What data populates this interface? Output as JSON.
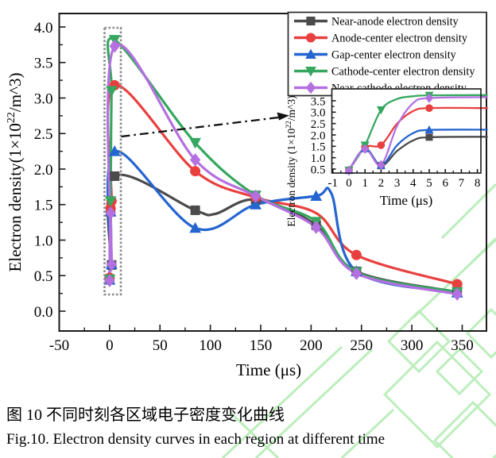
{
  "figure": {
    "caption_cn": "图 10 不同时刻各区域电子密度变化曲线",
    "caption_en": "Fig.10. Electron density curves in each region at different time"
  },
  "colors": {
    "near_anode": "#4b4b4b",
    "anode_center": "#e8403f",
    "gap_center": "#2565d0",
    "cathode_center": "#36a75f",
    "near_cathode": "#b470e0",
    "axis": "#1a1a1a",
    "zoom_box": "#8a8a8a",
    "arrow": "#111111",
    "watermark": "#bceebc"
  },
  "legend": {
    "position": "top-right",
    "items": [
      {
        "label": "Near-anode electron density",
        "marker": "square",
        "color": "#4b4b4b"
      },
      {
        "label": "Anode-center electron density",
        "marker": "circle",
        "color": "#e8403f"
      },
      {
        "label": "Gap-center electron density",
        "marker": "triangle-up",
        "color": "#2565d0"
      },
      {
        "label": "Cathode-center electron density",
        "marker": "triangle-down",
        "color": "#36a75f"
      },
      {
        "label": "Near-cathode electron density",
        "marker": "diamond",
        "color": "#b470e0"
      }
    ]
  },
  "chart_data": [
    {
      "type": "line",
      "title": "",
      "xlabel": "Time (μs)",
      "ylabel": "Electron density(1×10^22/m^3)",
      "ylabel_parts": {
        "pre": "Electron density(1×10",
        "sup": "22",
        "post": "/m^3)"
      },
      "xlim": [
        -50,
        373
      ],
      "ylim": [
        -0.28,
        4.19
      ],
      "grid": false,
      "xticks": [
        -50,
        0,
        50,
        100,
        150,
        200,
        250,
        300,
        350
      ],
      "xtick_labels": [
        "-50",
        "0",
        "50",
        "100",
        "150",
        "200",
        "250",
        "300",
        "350"
      ],
      "yticks": [
        0,
        0.5,
        1,
        1.5,
        2,
        2.5,
        3,
        3.5,
        4
      ],
      "ytick_labels": [
        "0.0",
        "0.5",
        "1.0",
        "1.5",
        "2.0",
        "2.5",
        "3.0",
        "3.5",
        "4.0"
      ],
      "series": [
        {
          "name": "Near-anode electron density",
          "slug": "near-anode",
          "color": "#4b4b4b",
          "marker": "square",
          "x": [
            0,
            1,
            2,
            5,
            85,
            145,
            205,
            245,
            345
          ],
          "y": [
            0.45,
            1.4,
            0.65,
            1.9,
            1.42,
            1.57,
            1.21,
            0.56,
            0.27
          ],
          "line_extra": [
            [
              105,
              1.37
            ]
          ]
        },
        {
          "name": "Anode-center electron density",
          "slug": "anode-center",
          "color": "#e8403f",
          "marker": "circle",
          "x": [
            0,
            1,
            2,
            5,
            85,
            145,
            245,
            345
          ],
          "y": [
            0.47,
            1.45,
            1.55,
            3.18,
            1.97,
            1.6,
            0.79,
            0.38
          ],
          "line_extra": [
            [
              205,
              1.38
            ]
          ]
        },
        {
          "name": "Gap-center electron density",
          "slug": "gap-center",
          "color": "#2565d0",
          "marker": "triangle-up",
          "x": [
            0,
            1,
            2,
            5,
            85,
            145,
            205,
            245,
            345
          ],
          "y": [
            0.44,
            1.4,
            0.66,
            2.25,
            1.17,
            1.5,
            1.62,
            0.56,
            0.26
          ],
          "line_extra": [
            [
              220,
              1.66
            ]
          ]
        },
        {
          "name": "Cathode-center electron density",
          "slug": "cathode-center",
          "color": "#36a75f",
          "marker": "triangle-down",
          "x": [
            0,
            1,
            2,
            5,
            85,
            145,
            205,
            245,
            345
          ],
          "y": [
            0.45,
            1.55,
            3.1,
            3.82,
            2.37,
            1.63,
            1.26,
            0.55,
            0.27
          ],
          "line_extra": []
        },
        {
          "name": "Near-cathode electron density",
          "slug": "near-cathode",
          "color": "#b470e0",
          "marker": "diamond",
          "x": [
            0,
            1,
            2,
            5,
            85,
            145,
            205,
            245,
            345
          ],
          "y": [
            0.43,
            1.38,
            0.66,
            3.73,
            2.13,
            1.62,
            1.18,
            0.53,
            0.24
          ],
          "line_extra": []
        }
      ],
      "annotations": {
        "zoom_region_box": {
          "x_range": [
            -5,
            11
          ],
          "y_range": [
            0.26,
            3.99
          ]
        },
        "arrow_to_inset": true
      }
    },
    {
      "type": "line",
      "title": "",
      "xlabel": "Time (μs)",
      "ylabel": "Electron density (1×10^22/m^3)",
      "ylabel_parts": {
        "pre": "Electron density (1×10",
        "sup": "22",
        "post": "/m^3)"
      },
      "xlim": [
        -1,
        8.7
      ],
      "ylim": [
        0.33,
        4.0
      ],
      "grid": false,
      "xticks": [
        -1,
        0,
        1,
        2,
        3,
        4,
        5,
        6,
        7,
        8
      ],
      "xtick_labels": [
        "-1",
        "0",
        "1",
        "2",
        "3",
        "4",
        "5",
        "6",
        "7",
        "8"
      ],
      "yticks": [
        0.5,
        1,
        1.5,
        2,
        2.5,
        3,
        3.5
      ],
      "ytick_labels": [
        "0.5",
        "1.0",
        "1.5",
        "2.0",
        "2.5",
        "3.0",
        "3.5"
      ],
      "series": [
        {
          "name": "Near-anode electron density",
          "slug": "near-anode",
          "color": "#4b4b4b",
          "marker": "square",
          "x": [
            0,
            1,
            2,
            5
          ],
          "y": [
            0.45,
            1.4,
            0.65,
            1.9
          ],
          "line_extra": [
            [
              3,
              1.3
            ],
            [
              4,
              1.76
            ],
            [
              8.6,
              1.92
            ]
          ]
        },
        {
          "name": "Anode-center electron density",
          "slug": "anode-center",
          "color": "#e8403f",
          "marker": "circle",
          "x": [
            0,
            1,
            2,
            5
          ],
          "y": [
            0.46,
            1.45,
            1.55,
            3.18
          ],
          "line_extra": [
            [
              3,
              2.5
            ],
            [
              4,
              3.05
            ],
            [
              8.6,
              3.18
            ]
          ]
        },
        {
          "name": "Gap-center electron density",
          "slug": "gap-center",
          "color": "#2565d0",
          "marker": "triangle-up",
          "x": [
            0,
            1,
            2,
            5
          ],
          "y": [
            0.44,
            1.4,
            0.66,
            2.22
          ],
          "line_extra": [
            [
              3,
              1.55
            ],
            [
              4,
              2.08
            ],
            [
              8.6,
              2.23
            ]
          ]
        },
        {
          "name": "Cathode-center electron density",
          "slug": "cathode-center",
          "color": "#36a75f",
          "marker": "triangle-down",
          "x": [
            0,
            1,
            2,
            5
          ],
          "y": [
            0.45,
            1.55,
            3.1,
            3.74
          ],
          "line_extra": [
            [
              3,
              3.58
            ],
            [
              4,
              3.7
            ],
            [
              8.6,
              3.75
            ]
          ]
        },
        {
          "name": "Near-cathode electron density",
          "slug": "near-cathode",
          "color": "#b470e0",
          "marker": "diamond",
          "x": [
            0,
            1,
            2,
            5
          ],
          "y": [
            0.43,
            1.38,
            0.68,
            3.62
          ],
          "line_extra": [
            [
              3,
              2.4
            ],
            [
              4,
              3.4
            ],
            [
              8.6,
              3.66
            ]
          ]
        }
      ]
    }
  ]
}
